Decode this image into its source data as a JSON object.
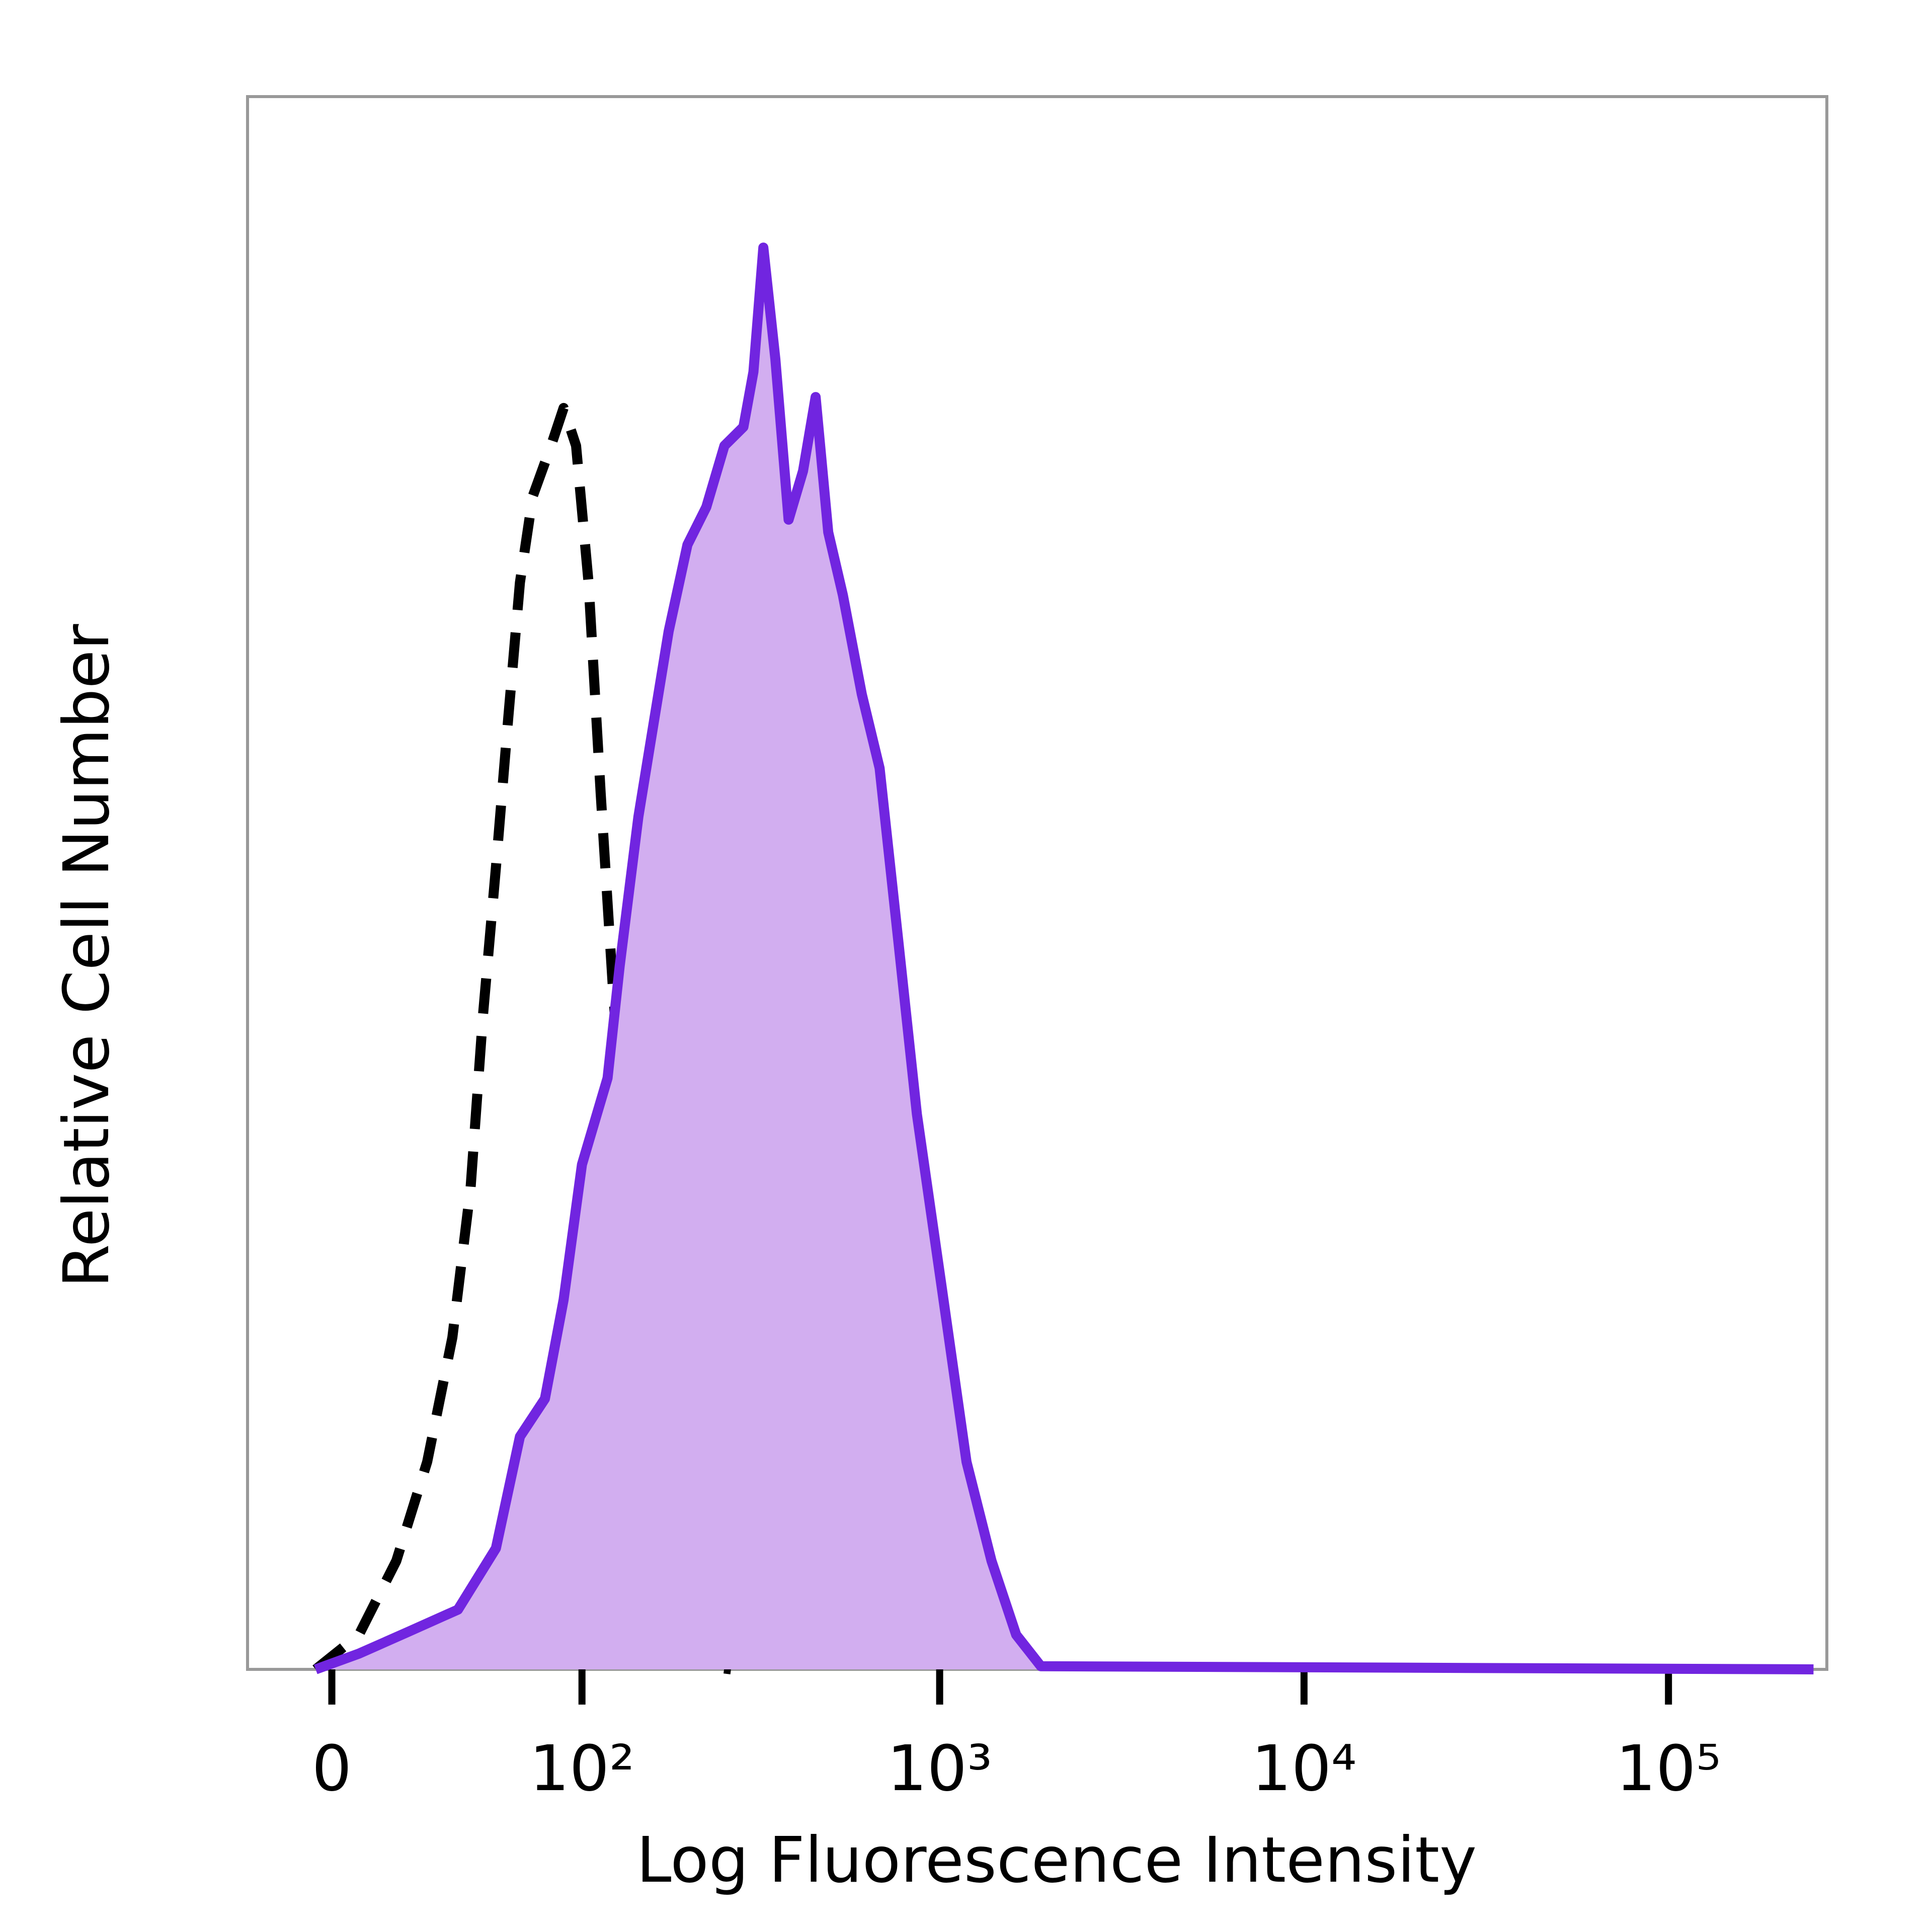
{
  "chart_data": {
    "type": "line",
    "xlabel": "Log Fluorescence Intensity",
    "ylabel": "Relative Cell Number",
    "xscale": "biexponential",
    "xlim": [
      -24,
      272000
    ],
    "ylim": [
      0,
      100
    ],
    "xticks": [
      0,
      {
        "value": 100,
        "label": "10²"
      },
      {
        "value": 1000,
        "label": "10³"
      },
      {
        "value": 10000,
        "label": "10⁴"
      },
      {
        "value": 100000,
        "label": "10⁵"
      }
    ],
    "series": [
      {
        "color": "#000000",
        "line_style": "dashed",
        "x": [
          -4.4,
          7.4,
          18,
          27.5,
          36,
          42.7,
          47.6,
          53,
          58.5,
          64,
          70.5,
          80.5,
          88,
          96,
          104.6,
          113.6,
          123.5,
          134,
          146,
          158,
          171,
          193.6,
          227,
          266
        ],
        "values": [
          0,
          2.2,
          6.9,
          13.2,
          21.1,
          30.6,
          41.6,
          51.0,
          60.5,
          69.1,
          74.6,
          77.8,
          80.2,
          77.8,
          69.1,
          55.7,
          43.1,
          32.1,
          22.7,
          14.0,
          6.9,
          1.4,
          0.2,
          0
        ]
      },
      {
        "color": "#7125e0",
        "fill": "#d2aef0",
        "line_style": "solid",
        "x": [
          -4.4,
          7.4,
          21.7,
          38,
          53,
          64,
          77,
          88,
          100,
          119,
          129,
          146,
          158,
          178,
          201,
          227,
          255,
          288,
          307,
          327,
          353,
          384,
          421,
          456,
          494,
          542,
          611,
          684,
          770,
          866,
          1013,
          1185,
          1388,
          1622,
          1896,
          250000
        ],
        "values": [
          0,
          1.0,
          2.4,
          3.8,
          7.7,
          14.8,
          17.2,
          23.5,
          32.1,
          37.6,
          44.7,
          54.2,
          58.9,
          66.0,
          71.5,
          73.9,
          77.8,
          79.0,
          82.5,
          90.4,
          83.3,
          73.1,
          76.2,
          80.9,
          72.3,
          68.3,
          62.0,
          57.3,
          46.3,
          35.3,
          24.3,
          13.2,
          6.9,
          2.2,
          0.2,
          0
        ]
      }
    ]
  }
}
